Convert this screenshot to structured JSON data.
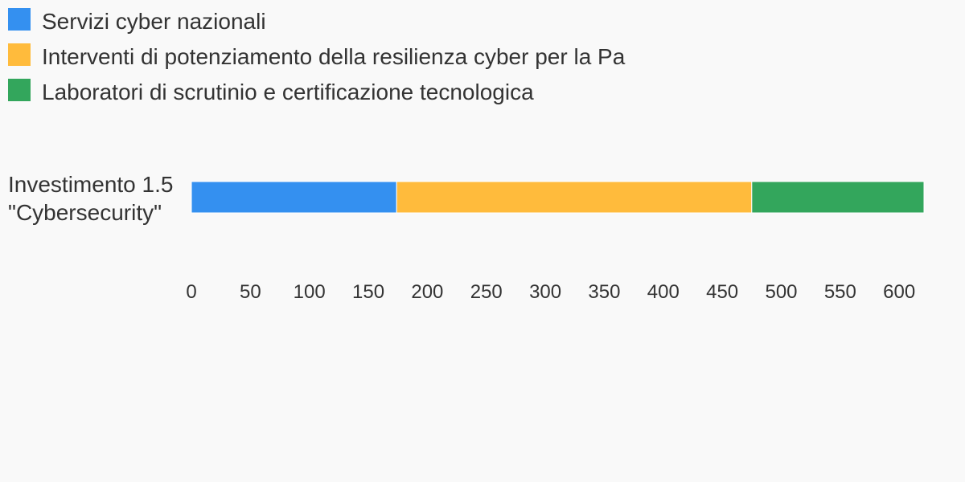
{
  "chart_data": {
    "type": "bar",
    "orientation": "horizontal",
    "stacked": true,
    "categories": [
      "Investimento 1.5 \"Cybersecurity\""
    ],
    "category_label_lines": [
      "Investimento 1.5",
      "\"Cybersecurity\""
    ],
    "series": [
      {
        "name": "Servizi cyber nazionali",
        "values": [
          174
        ],
        "color": "#3490f0"
      },
      {
        "name": "Interventi di potenziamento della resilienza cyber per la Pa",
        "values": [
          301
        ],
        "color": "#ffbb3c"
      },
      {
        "name": "Laboratori di scrutinio e certificazione tecnologica",
        "values": [
          146
        ],
        "color": "#33a65c"
      }
    ],
    "xlim": [
      0,
      621
    ],
    "x_ticks": [
      0,
      50,
      100,
      150,
      200,
      250,
      300,
      350,
      400,
      450,
      500,
      550,
      600
    ],
    "x_tick_labels": [
      "0",
      "50",
      "100",
      "150",
      "200",
      "250",
      "300",
      "350",
      "400",
      "450",
      "500",
      "550",
      "600"
    ],
    "grid": false,
    "legend_position": "top-left",
    "title": "",
    "xlabel": "",
    "ylabel": ""
  }
}
